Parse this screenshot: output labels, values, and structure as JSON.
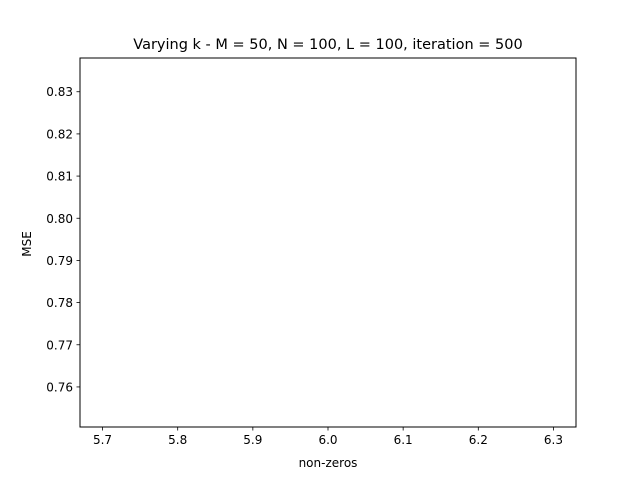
{
  "chart_data": {
    "type": "line",
    "title": "Varying k - M = 50, N = 100, L = 100, iteration = 500",
    "xlabel": "non-zeros",
    "ylabel": "MSE",
    "xlim": [
      5.67,
      6.33
    ],
    "ylim": [
      0.7505,
      0.838
    ],
    "xticks": [
      5.7,
      5.8,
      5.9,
      6.0,
      6.1,
      6.2,
      6.3
    ],
    "xtick_labels": [
      "5.7",
      "5.8",
      "5.9",
      "6.0",
      "6.1",
      "6.2",
      "6.3"
    ],
    "yticks": [
      0.76,
      0.77,
      0.78,
      0.79,
      0.8,
      0.81,
      0.82,
      0.83
    ],
    "ytick_labels": [
      "0.76",
      "0.77",
      "0.78",
      "0.79",
      "0.80",
      "0.81",
      "0.82",
      "0.83"
    ],
    "grid": false,
    "series": []
  }
}
